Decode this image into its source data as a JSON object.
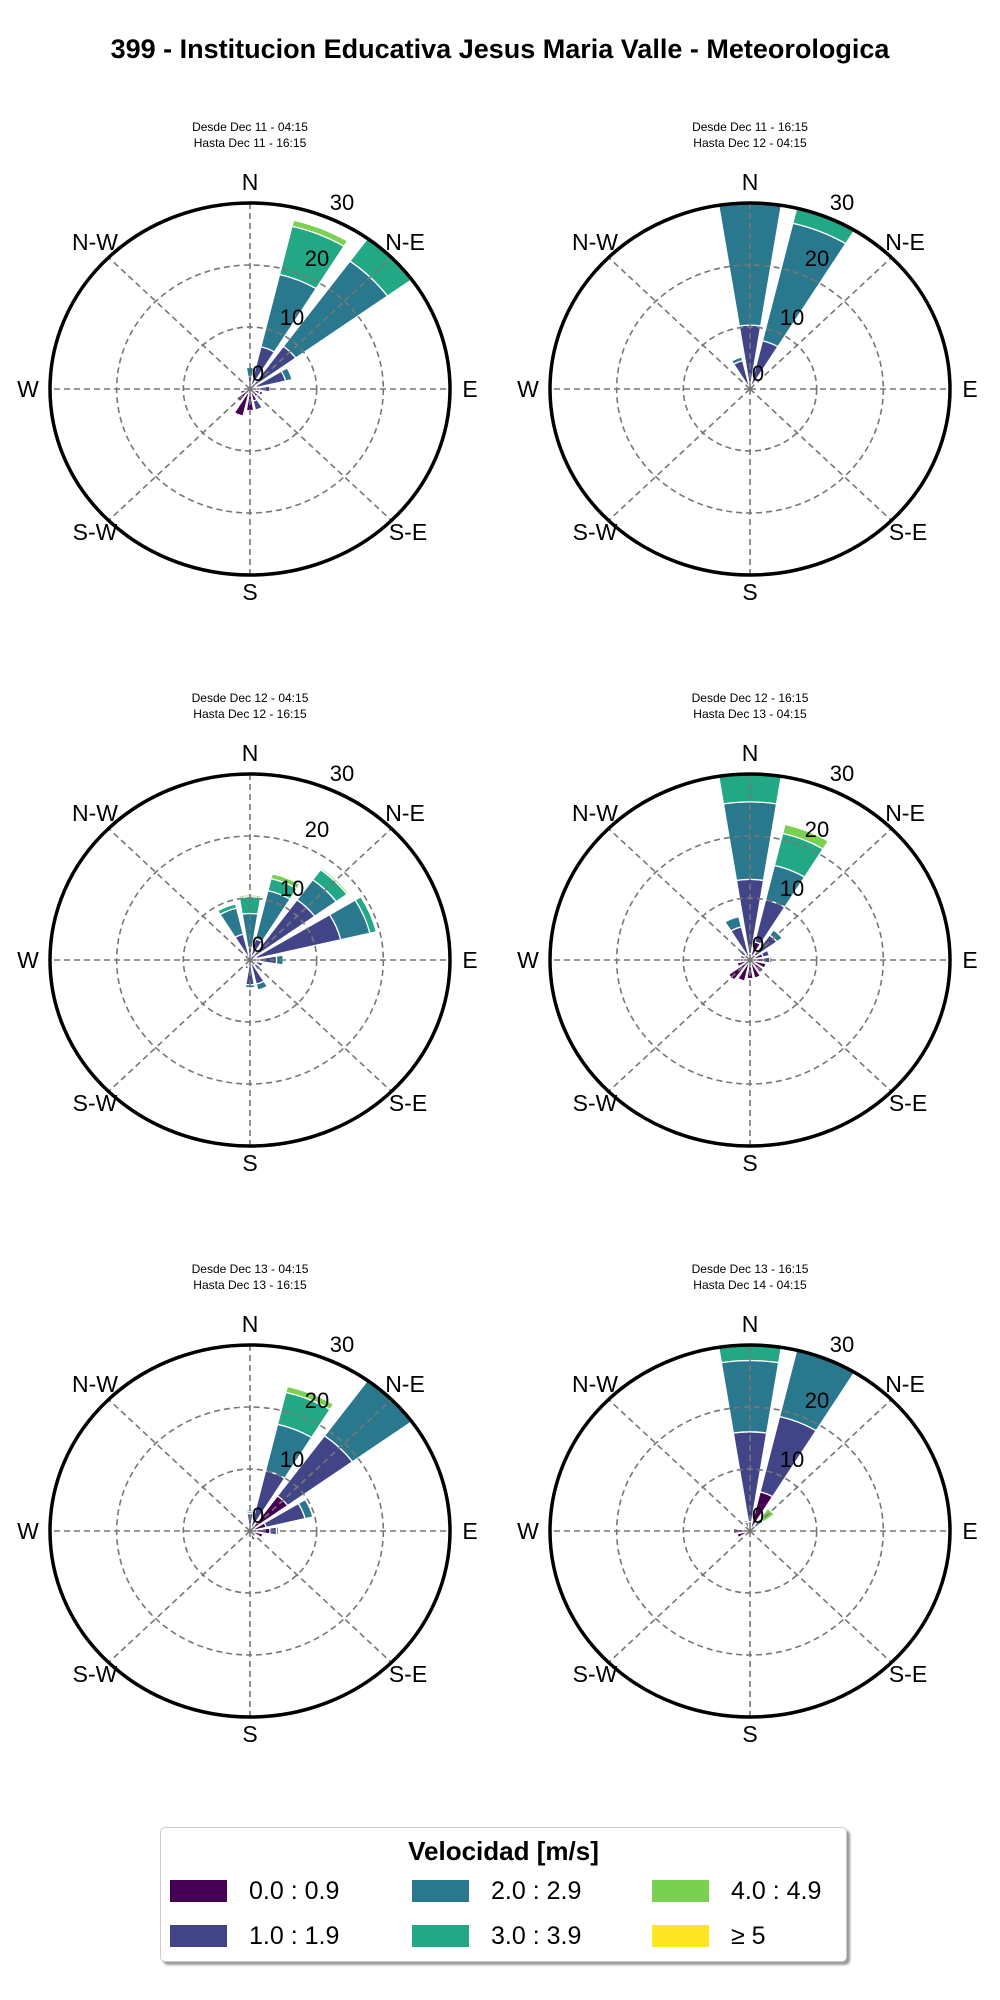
{
  "title": "399 - Institucion Educativa Jesus Maria Valle - Meteorologica",
  "legend": {
    "title": "Velocidad [m/s]",
    "items": [
      {
        "label": "0.0 : 0.9",
        "color": "#440154"
      },
      {
        "label": "1.0 : 1.9",
        "color": "#414487"
      },
      {
        "label": "2.0 : 2.9",
        "color": "#2a788e"
      },
      {
        "label": "3.0 : 3.9",
        "color": "#22a884"
      },
      {
        "label": "4.0 : 4.9",
        "color": "#7ad151"
      },
      {
        "label": "≥ 5",
        "color": "#fde725"
      }
    ]
  },
  "chart_data": [
    {
      "type": "windrose",
      "subtitle_from": "Desde Dec 11 - 04:15",
      "subtitle_to": "Hasta Dec 11 - 16:15",
      "rlim": [
        0,
        30
      ],
      "rticks": [
        "0",
        "10",
        "20",
        "30"
      ],
      "axis_labels": [
        "N",
        "N-E",
        "E",
        "S-E",
        "S",
        "S-W",
        "W",
        "N-W"
      ],
      "bin_angles_deg": [
        0,
        22.5,
        45,
        67.5,
        90,
        112.5,
        135,
        157.5,
        180,
        202.5,
        225,
        247.5,
        270,
        292.5,
        315,
        337.5
      ],
      "values": [
        [
          0.5,
          1.5,
          1.5,
          0,
          0,
          0
        ],
        [
          0.5,
          6.5,
          12,
          8,
          1,
          0
        ],
        [
          0.5,
          8,
          17,
          6.5,
          0,
          0
        ],
        [
          1,
          4.5,
          1,
          0,
          0,
          0
        ],
        [
          1.5,
          1.5,
          0,
          0,
          0,
          0
        ],
        [
          1.5,
          0.5,
          0,
          0,
          0,
          0
        ],
        [
          1.5,
          0,
          0,
          0,
          0,
          0
        ],
        [
          2,
          1.5,
          0,
          0,
          0,
          0
        ],
        [
          3.5,
          0,
          0,
          0,
          0,
          0
        ],
        [
          4.5,
          0,
          0,
          0,
          0,
          0
        ],
        [
          2.5,
          0,
          0,
          0,
          0,
          0
        ],
        [
          1.5,
          0,
          0,
          0,
          0,
          0
        ],
        [
          1,
          0,
          0,
          0,
          0,
          0
        ],
        [
          0.7,
          0,
          0,
          0,
          0,
          0
        ],
        [
          0.5,
          0,
          0,
          0,
          0,
          0
        ],
        [
          0.5,
          0,
          0,
          0,
          0,
          0
        ]
      ]
    },
    {
      "type": "windrose",
      "subtitle_from": "Desde Dec 11 - 16:15",
      "subtitle_to": "Hasta Dec 12 - 04:15",
      "rlim": [
        0,
        30
      ],
      "rticks": [
        "0",
        "10",
        "20",
        "30"
      ],
      "axis_labels": [
        "N",
        "N-E",
        "E",
        "S-E",
        "S",
        "S-W",
        "W",
        "N-W"
      ],
      "bin_angles_deg": [
        0,
        22.5,
        45,
        67.5,
        90,
        112.5,
        135,
        157.5,
        180,
        202.5,
        225,
        247.5,
        270,
        292.5,
        315,
        337.5
      ],
      "values": [
        [
          0.3,
          10,
          22,
          0,
          0,
          0
        ],
        [
          0.3,
          7.7,
          19.5,
          3,
          0,
          0
        ],
        [
          0.3,
          0,
          0,
          0,
          0,
          0
        ],
        [
          0.2,
          0,
          0,
          0,
          0,
          0
        ],
        [
          0.2,
          0,
          0,
          0,
          0,
          0
        ],
        [
          0.2,
          0,
          0,
          0,
          0,
          0
        ],
        [
          0.2,
          0,
          0,
          0,
          0,
          0
        ],
        [
          0.2,
          0,
          0,
          0,
          0,
          0
        ],
        [
          0.2,
          0,
          0,
          0,
          0,
          0
        ],
        [
          0.2,
          0,
          0,
          0,
          0,
          0
        ],
        [
          0.2,
          0,
          0,
          0,
          0,
          0
        ],
        [
          0.2,
          0,
          0,
          0,
          0,
          0
        ],
        [
          0.2,
          0,
          0,
          0,
          0,
          0
        ],
        [
          0.2,
          0,
          0,
          0,
          0,
          0
        ],
        [
          0.3,
          0,
          0,
          0,
          0,
          0
        ],
        [
          0.3,
          4.4,
          0.6,
          0,
          0,
          0
        ]
      ]
    },
    {
      "type": "windrose",
      "subtitle_from": "Desde Dec 12 - 04:15",
      "subtitle_to": "Hasta Dec 12 - 16:15",
      "rlim": [
        0,
        30
      ],
      "rticks": [
        "0",
        "10",
        "20",
        "30"
      ],
      "axis_labels": [
        "N",
        "N-E",
        "E",
        "S-E",
        "S",
        "S-W",
        "W",
        "N-W"
      ],
      "bin_angles_deg": [
        0,
        22.5,
        45,
        67.5,
        90,
        112.5,
        135,
        157.5,
        180,
        202.5,
        225,
        247.5,
        270,
        292.5,
        315,
        337.5
      ],
      "values": [
        [
          0.5,
          1.5,
          5.5,
          2.7,
          0.3,
          0
        ],
        [
          0.5,
          3,
          8,
          2,
          0.8,
          0
        ],
        [
          0.5,
          11.5,
          4,
          2,
          0.3,
          0
        ],
        [
          1,
          13,
          4.5,
          1,
          0,
          0
        ],
        [
          1.5,
          2.5,
          1,
          0,
          0,
          0
        ],
        [
          1,
          1,
          0,
          0,
          0,
          0
        ],
        [
          1,
          1,
          0,
          0,
          0,
          0
        ],
        [
          0.5,
          3.5,
          1,
          0,
          0,
          0
        ],
        [
          0.5,
          3.5,
          0.5,
          0,
          0,
          0
        ],
        [
          1,
          0.5,
          0,
          0,
          0,
          0
        ],
        [
          0.7,
          0,
          0,
          0,
          0,
          0
        ],
        [
          0.5,
          0,
          0,
          0,
          0,
          0
        ],
        [
          0.5,
          0,
          0,
          0,
          0,
          0
        ],
        [
          0.5,
          0,
          0,
          0,
          0,
          0
        ],
        [
          0.5,
          0,
          0,
          0,
          0,
          0
        ],
        [
          0.3,
          4,
          4.3,
          0.7,
          0,
          0
        ]
      ]
    },
    {
      "type": "windrose",
      "subtitle_from": "Desde Dec 12 - 16:15",
      "subtitle_to": "Hasta Dec 13 - 04:15",
      "rlim": [
        0,
        30
      ],
      "rticks": [
        "0",
        "10",
        "20",
        "30"
      ],
      "axis_labels": [
        "N",
        "N-E",
        "E",
        "S-E",
        "S",
        "S-W",
        "W",
        "N-W"
      ],
      "bin_angles_deg": [
        0,
        22.5,
        45,
        67.5,
        90,
        112.5,
        135,
        157.5,
        180,
        202.5,
        225,
        247.5,
        270,
        292.5,
        315,
        337.5
      ],
      "values": [
        [
          1,
          12,
          12.5,
          6,
          0,
          0
        ],
        [
          3,
          7,
          5.7,
          5.3,
          1.5,
          0
        ],
        [
          1,
          4,
          1,
          0,
          0,
          0
        ],
        [
          2,
          1,
          0,
          0,
          0,
          0
        ],
        [
          2,
          1,
          0.3,
          0,
          0,
          0
        ],
        [
          2.5,
          0,
          0,
          0,
          0,
          0
        ],
        [
          2.5,
          0,
          0,
          0,
          0,
          0
        ],
        [
          3,
          0,
          0,
          0,
          0,
          0
        ],
        [
          3,
          0,
          0,
          0,
          0,
          0
        ],
        [
          3.5,
          0,
          0,
          0,
          0,
          0
        ],
        [
          4,
          0,
          0,
          0,
          0,
          0
        ],
        [
          2,
          0,
          0,
          0,
          0,
          0
        ],
        [
          1.5,
          0,
          0,
          0,
          0,
          0
        ],
        [
          1.5,
          0,
          0,
          0,
          0,
          0
        ],
        [
          1,
          1,
          0,
          0,
          0,
          0
        ],
        [
          0.5,
          5,
          1.7,
          0,
          0,
          0
        ]
      ]
    },
    {
      "type": "windrose",
      "subtitle_from": "Desde Dec 13 - 04:15",
      "subtitle_to": "Hasta Dec 13 - 16:15",
      "rlim": [
        0,
        30
      ],
      "rticks": [
        "0",
        "10",
        "20",
        "30"
      ],
      "axis_labels": [
        "N",
        "N-E",
        "E",
        "S-E",
        "S",
        "S-W",
        "W",
        "N-W"
      ],
      "bin_angles_deg": [
        0,
        22.5,
        45,
        67.5,
        90,
        112.5,
        135,
        157.5,
        180,
        202.5,
        225,
        247.5,
        270,
        292.5,
        315,
        337.5
      ],
      "values": [
        [
          0.3,
          2.5,
          0.3,
          0.3,
          0,
          0
        ],
        [
          0.5,
          9.5,
          7.7,
          5.3,
          1,
          0
        ],
        [
          7,
          12,
          13,
          0,
          0,
          0
        ],
        [
          2.5,
          6,
          1.2,
          0,
          0,
          0
        ],
        [
          3,
          1,
          0.3,
          0,
          0,
          0
        ],
        [
          2,
          0,
          0,
          0,
          0,
          0
        ],
        [
          1,
          0,
          0,
          0,
          0,
          0
        ],
        [
          1.5,
          0,
          0,
          0,
          0,
          0
        ],
        [
          1,
          0,
          0,
          0,
          0,
          0
        ],
        [
          1,
          0,
          0,
          0,
          0,
          0
        ],
        [
          0.5,
          0,
          0,
          0,
          0,
          0
        ],
        [
          0.5,
          0,
          0,
          0,
          0,
          0
        ],
        [
          0.5,
          0,
          0,
          0,
          0,
          0
        ],
        [
          0.5,
          0,
          0,
          0,
          0,
          0
        ],
        [
          0.5,
          0,
          0,
          0,
          0,
          0
        ],
        [
          0.5,
          0,
          0,
          0,
          0,
          0
        ]
      ]
    },
    {
      "type": "windrose",
      "subtitle_from": "Desde Dec 13 - 16:15",
      "subtitle_to": "Hasta Dec 14 - 04:15",
      "rlim": [
        0,
        30
      ],
      "rticks": [
        "0",
        "10",
        "20",
        "30"
      ],
      "axis_labels": [
        "N",
        "N-E",
        "E",
        "S-E",
        "S",
        "S-W",
        "W",
        "N-W"
      ],
      "bin_angles_deg": [
        0,
        22.5,
        45,
        67.5,
        90,
        112.5,
        135,
        157.5,
        180,
        202.5,
        225,
        247.5,
        270,
        292.5,
        315,
        337.5
      ],
      "values": [
        [
          1.5,
          14.5,
          11.5,
          3.5,
          0,
          0
        ],
        [
          6.5,
          12.5,
          11,
          1,
          0,
          0
        ],
        [
          0,
          1,
          1.5,
          0,
          2,
          0
        ],
        [
          0.3,
          0,
          0,
          0,
          0,
          0
        ],
        [
          0.3,
          0,
          0,
          0,
          0,
          0
        ],
        [
          0.3,
          0,
          0,
          0,
          0,
          0
        ],
        [
          0.3,
          0,
          0,
          0,
          0,
          0
        ],
        [
          0.3,
          0,
          0,
          0,
          0,
          0
        ],
        [
          0.3,
          0,
          0,
          0,
          0,
          0
        ],
        [
          0.3,
          0,
          0,
          0,
          0,
          0
        ],
        [
          0.3,
          0,
          0,
          0,
          0,
          0
        ],
        [
          2,
          0,
          0,
          0,
          0,
          0
        ],
        [
          2.5,
          0,
          0,
          0,
          0,
          0
        ],
        [
          1,
          0,
          0,
          0,
          0,
          0
        ],
        [
          0.3,
          0,
          0,
          0,
          0,
          0
        ],
        [
          0,
          1.5,
          0.3,
          0,
          0,
          0
        ]
      ]
    }
  ]
}
